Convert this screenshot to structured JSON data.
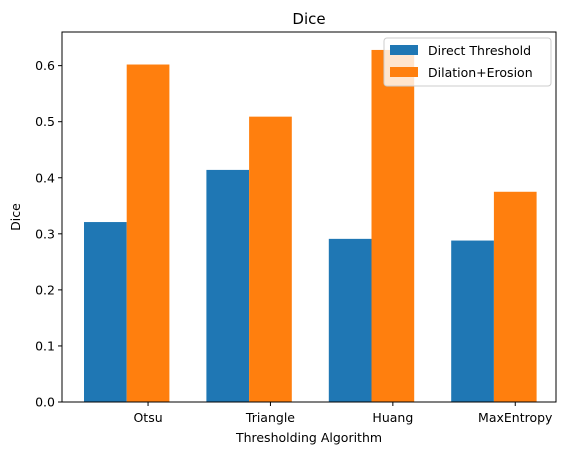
{
  "chart_data": {
    "type": "bar",
    "title": "Dice",
    "xlabel": "Thresholding Algorithm",
    "ylabel": "Dice",
    "categories": [
      "Otsu",
      "Triangle",
      "Huang",
      "MaxEntropy"
    ],
    "series": [
      {
        "name": "Direct Threshold",
        "color": "#1f77b4",
        "values": [
          0.321,
          0.414,
          0.291,
          0.288
        ]
      },
      {
        "name": "Dilation+Erosion",
        "color": "#ff7f0e",
        "values": [
          0.602,
          0.509,
          0.628,
          0.375
        ]
      }
    ],
    "ylim": [
      0,
      0.66
    ],
    "yticks": [
      "0.0",
      "0.1",
      "0.2",
      "0.3",
      "0.4",
      "0.5",
      "0.6"
    ],
    "grid": false,
    "legend_position": "top-right"
  }
}
